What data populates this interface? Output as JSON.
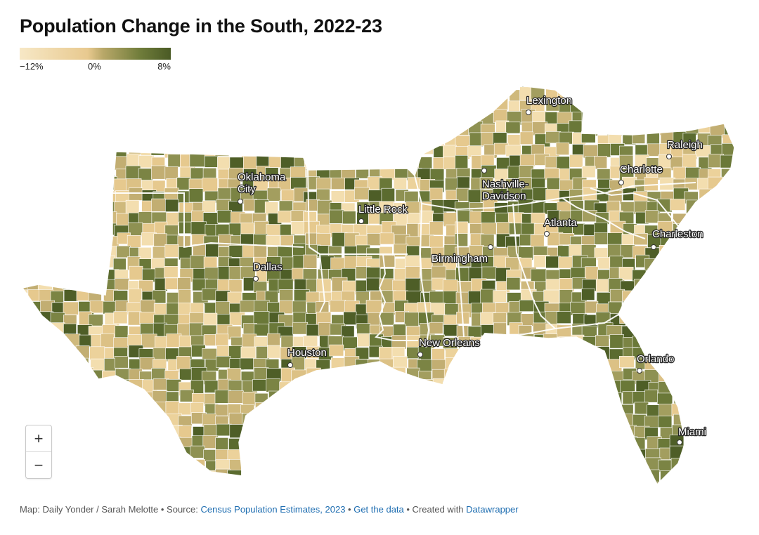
{
  "title": "Population Change in the South, 2022-23",
  "legend": {
    "min_label": "−12%",
    "mid_label": "0%",
    "max_label": "8%",
    "gradient_colors": [
      "#f7e8c6",
      "#e8c98f",
      "#b9a869",
      "#6f7c3a",
      "#4a5a25"
    ]
  },
  "cities": [
    {
      "name": "Lexington"
    },
    {
      "name": "Raleigh"
    },
    {
      "name": "Oklahoma City"
    },
    {
      "name": "Charlotte"
    },
    {
      "name": "Nashville-Davidson"
    },
    {
      "name": "Little Rock"
    },
    {
      "name": "Atlanta"
    },
    {
      "name": "Charleston"
    },
    {
      "name": "Dallas"
    },
    {
      "name": "Birmingham"
    },
    {
      "name": "New Orleans"
    },
    {
      "name": "Houston"
    },
    {
      "name": "Orlando"
    },
    {
      "name": "Miami"
    }
  ],
  "zoom": {
    "in_label": "+",
    "out_label": "−"
  },
  "footer": {
    "prefix": "Map: Daily Yonder / Sarah Melotte • Source: ",
    "source_link": "Census Population Estimates, 2023",
    "sep1": " • ",
    "data_link": "Get the data",
    "sep2": " • Created with ",
    "tool_link": "Datawrapper"
  }
}
